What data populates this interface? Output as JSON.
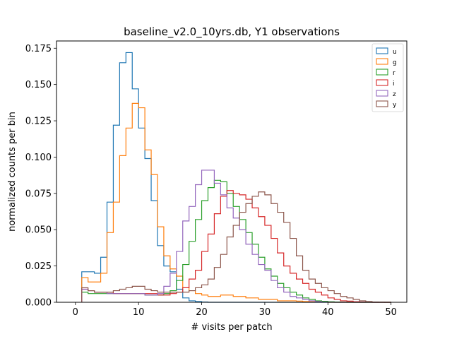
{
  "chart_data": {
    "type": "line",
    "title": "baseline_v2.0_10yrs.db, Y1 observations",
    "xlabel": "# visits per patch",
    "ylabel": "normalized counts per bin",
    "xlim": [
      -3,
      52.5
    ],
    "ylim": [
      0,
      0.18
    ],
    "xticks": [
      0,
      10,
      20,
      30,
      40,
      50
    ],
    "xtick_labels": [
      "0",
      "10",
      "20",
      "30",
      "40",
      "50"
    ],
    "yticks": [
      0,
      0.025,
      0.05,
      0.075,
      0.1,
      0.125,
      0.15,
      0.175
    ],
    "ytick_labels": [
      "0.000",
      "0.025",
      "0.050",
      "0.075",
      "0.100",
      "0.125",
      "0.150",
      "0.175"
    ],
    "grid": false,
    "legend_position": "top-right",
    "bin_edges_start": 1,
    "bin_width": 1,
    "series": [
      {
        "name": "u",
        "color": "#1f77b4",
        "values": [
          0.021,
          0.021,
          0.02,
          0.031,
          0.069,
          0.122,
          0.165,
          0.172,
          0.147,
          0.12,
          0.099,
          0.07,
          0.039,
          0.025,
          0.021,
          0.009,
          0.003,
          0.001,
          0.0005,
          0.0002,
          0,
          0,
          0,
          0,
          0,
          0,
          0,
          0,
          0,
          0,
          0,
          0,
          0,
          0,
          0,
          0,
          0,
          0,
          0,
          0,
          0,
          0,
          0,
          0,
          0,
          0,
          0,
          0,
          0
        ]
      },
      {
        "name": "g",
        "color": "#ff7f0e",
        "values": [
          0.017,
          0.014,
          0.014,
          0.02,
          0.048,
          0.069,
          0.101,
          0.12,
          0.137,
          0.134,
          0.105,
          0.088,
          0.052,
          0.032,
          0.023,
          0.018,
          0.01,
          0.008,
          0.006,
          0.005,
          0.004,
          0.004,
          0.005,
          0.005,
          0.004,
          0.004,
          0.003,
          0.003,
          0.002,
          0.002,
          0.002,
          0.001,
          0.001,
          0.001,
          0.0008,
          0.0005,
          0.0003,
          0.0002,
          0.0001,
          0,
          0,
          0,
          0,
          0,
          0,
          0,
          0,
          0,
          0
        ]
      },
      {
        "name": "r",
        "color": "#2ca02c",
        "values": [
          0.007,
          0.006,
          0.006,
          0.006,
          0.006,
          0.006,
          0.006,
          0.006,
          0.006,
          0.006,
          0.005,
          0.005,
          0.005,
          0.006,
          0.008,
          0.015,
          0.026,
          0.042,
          0.057,
          0.07,
          0.079,
          0.084,
          0.083,
          0.075,
          0.066,
          0.057,
          0.048,
          0.04,
          0.031,
          0.023,
          0.018,
          0.013,
          0.01,
          0.007,
          0.005,
          0.003,
          0.002,
          0.001,
          0.0007,
          0.0004,
          0.0002,
          0.0001,
          0,
          0,
          0,
          0,
          0,
          0,
          0
        ]
      },
      {
        "name": "i",
        "color": "#d62728",
        "values": [
          0.009,
          0.008,
          0.007,
          0.007,
          0.007,
          0.006,
          0.006,
          0.006,
          0.006,
          0.006,
          0.006,
          0.006,
          0.005,
          0.005,
          0.006,
          0.007,
          0.01,
          0.016,
          0.022,
          0.035,
          0.047,
          0.061,
          0.073,
          0.077,
          0.075,
          0.074,
          0.071,
          0.065,
          0.059,
          0.053,
          0.044,
          0.034,
          0.025,
          0.02,
          0.016,
          0.013,
          0.009,
          0.007,
          0.005,
          0.003,
          0.002,
          0.001,
          0.0008,
          0.0004,
          0.0002,
          0.0001,
          0,
          0,
          0
        ]
      },
      {
        "name": "z",
        "color": "#9467bd",
        "values": [
          0.009,
          0.008,
          0.007,
          0.007,
          0.006,
          0.006,
          0.006,
          0.006,
          0.006,
          0.006,
          0.005,
          0.005,
          0.006,
          0.011,
          0.02,
          0.035,
          0.056,
          0.066,
          0.081,
          0.091,
          0.091,
          0.082,
          0.074,
          0.065,
          0.058,
          0.05,
          0.04,
          0.033,
          0.026,
          0.022,
          0.015,
          0.01,
          0.007,
          0.004,
          0.003,
          0.002,
          0.001,
          0.0005,
          0.0002,
          0.0001,
          0,
          0,
          0,
          0,
          0,
          0,
          0,
          0,
          0
        ]
      },
      {
        "name": "y",
        "color": "#8c564b",
        "values": [
          0.01,
          0.008,
          0.007,
          0.007,
          0.007,
          0.008,
          0.009,
          0.01,
          0.011,
          0.011,
          0.009,
          0.008,
          0.007,
          0.007,
          0.007,
          0.007,
          0.007,
          0.008,
          0.01,
          0.012,
          0.016,
          0.024,
          0.033,
          0.045,
          0.053,
          0.062,
          0.068,
          0.073,
          0.076,
          0.074,
          0.068,
          0.062,
          0.055,
          0.044,
          0.032,
          0.022,
          0.016,
          0.013,
          0.01,
          0.008,
          0.006,
          0.004,
          0.003,
          0.002,
          0.001,
          0.0005,
          0.0002,
          0.0001,
          0
        ]
      }
    ]
  }
}
